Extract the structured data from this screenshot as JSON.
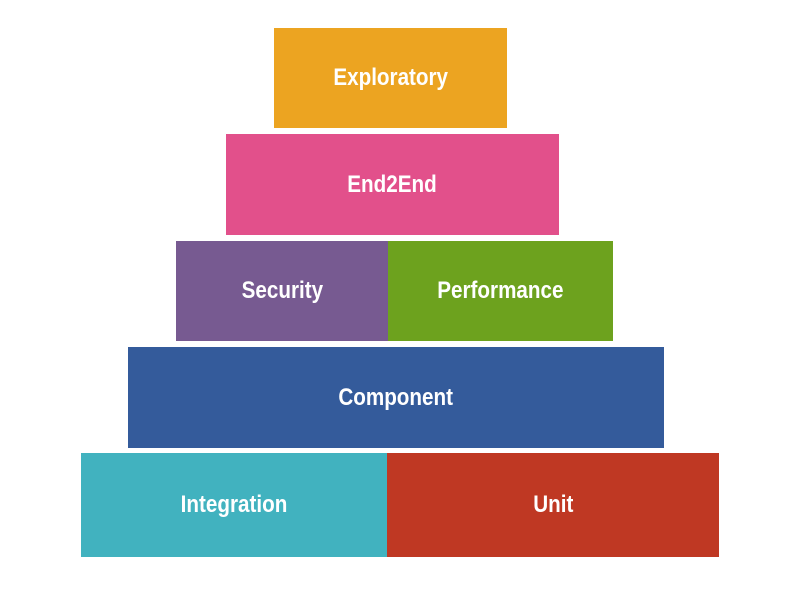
{
  "pyramid": {
    "tiers": [
      [
        {
          "label": "Exploratory",
          "color": "#eca421"
        }
      ],
      [
        {
          "label": "End2End",
          "color": "#e2508b"
        }
      ],
      [
        {
          "label": "Security",
          "color": "#775a91"
        },
        {
          "label": "Performance",
          "color": "#6da21e"
        }
      ],
      [
        {
          "label": "Component",
          "color": "#345b9b"
        }
      ],
      [
        {
          "label": "Integration",
          "color": "#41b2bf"
        },
        {
          "label": "Unit",
          "color": "#bf3823"
        }
      ]
    ]
  }
}
